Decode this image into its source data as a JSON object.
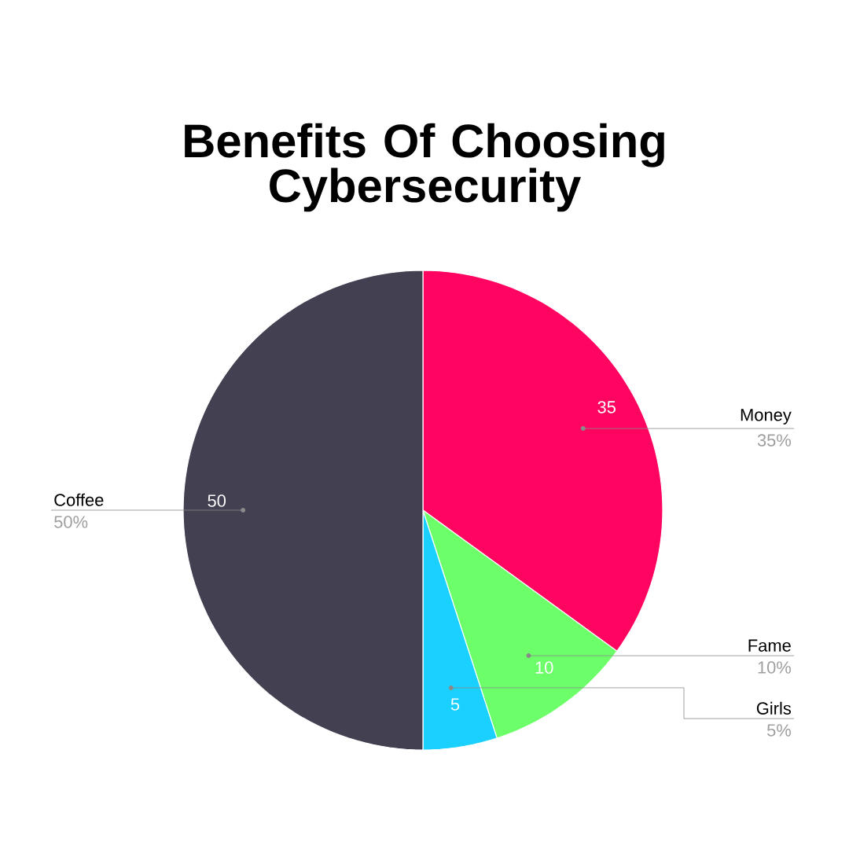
{
  "chart_data": {
    "type": "pie",
    "title": "Benefits Of Choosing Cybersecurity",
    "categories": [
      "Money",
      "Fame",
      "Girls",
      "Coffee"
    ],
    "values": [
      35,
      10,
      5,
      50
    ],
    "colors": [
      "#ff0461",
      "#6dff6a",
      "#1ad0ff",
      "#434052"
    ],
    "data_labels": true,
    "annotations": [
      "35%",
      "10%",
      "5%",
      "50%"
    ]
  }
}
